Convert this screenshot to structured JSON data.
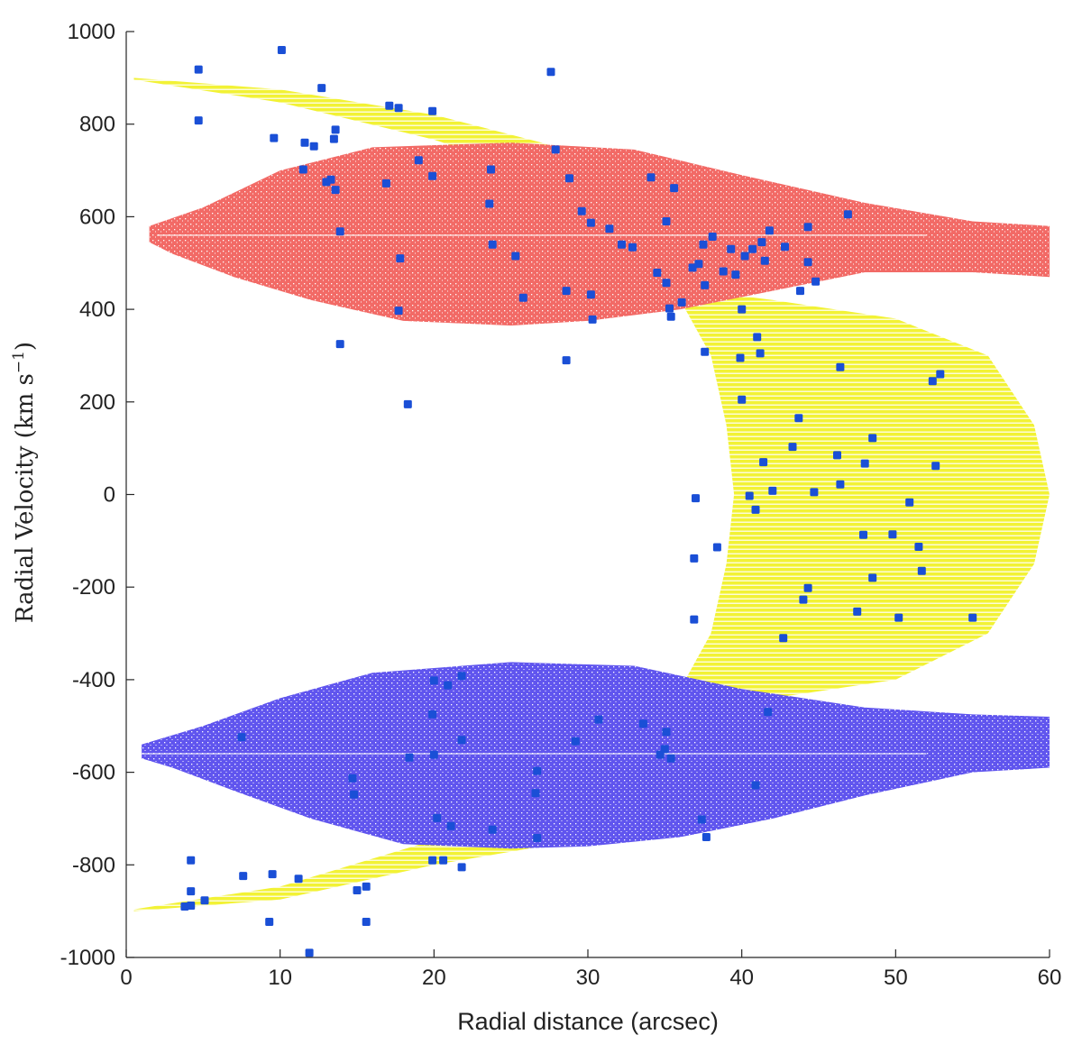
{
  "chart_data": {
    "type": "scatter",
    "xlabel": "Radial distance (arcsec)",
    "ylabel_text": "Radial Velocity (km s",
    "ylabel_sup": "−1",
    "ylabel_close": ")",
    "xlim": [
      0,
      60
    ],
    "ylim": [
      -1000,
      1000
    ],
    "xticks": [
      0,
      10,
      20,
      30,
      40,
      50,
      60
    ],
    "yticks": [
      -1000,
      -800,
      -600,
      -400,
      -200,
      0,
      200,
      400,
      600,
      800,
      1000
    ],
    "grid": false,
    "legend": "none",
    "colors": {
      "yellow_region": "#f2f235",
      "red_region": "#f26a66",
      "blue_region": "#6055ee",
      "observed_points": "#1a4fd6"
    },
    "regions": [
      {
        "color": "yellow",
        "upper_arc": {
          "outer": [
            [
              0.5,
              900
            ],
            [
              10,
              875
            ],
            [
              20,
              820
            ],
            [
              27,
              760
            ],
            [
              32,
              700
            ],
            [
              36,
              600
            ]
          ],
          "inner": [
            [
              10,
              890
            ],
            [
              20,
              840
            ],
            [
              28,
              760
            ]
          ]
        },
        "lower_arc": {
          "outer": [
            [
              0.5,
              -900
            ],
            [
              10,
              -875
            ],
            [
              20,
              -800
            ],
            [
              27,
              -760
            ],
            [
              32,
              -700
            ],
            [
              36,
              -600
            ]
          ]
        },
        "crescent_outer": [
          [
            35,
            450
          ],
          [
            42,
            420
          ],
          [
            50,
            380
          ],
          [
            56,
            300
          ],
          [
            59,
            150
          ],
          [
            60,
            0
          ],
          [
            59,
            -150
          ],
          [
            56,
            -300
          ],
          [
            50,
            -400
          ],
          [
            42,
            -440
          ],
          [
            35,
            -420
          ]
        ],
        "crescent_inner": [
          [
            36,
            420
          ],
          [
            38,
            300
          ],
          [
            39,
            150
          ],
          [
            39.5,
            0
          ],
          [
            39,
            -150
          ],
          [
            38,
            -300
          ],
          [
            36,
            -420
          ]
        ]
      },
      {
        "color": "red",
        "center_velocity": 560,
        "outline": [
          [
            1.5,
            580
          ],
          [
            5,
            620
          ],
          [
            10,
            700
          ],
          [
            16,
            750
          ],
          [
            25,
            760
          ],
          [
            33,
            745
          ],
          [
            40,
            690
          ],
          [
            48,
            630
          ],
          [
            55,
            590
          ],
          [
            60,
            580
          ],
          [
            60,
            470
          ],
          [
            55,
            480
          ],
          [
            48,
            480
          ],
          [
            42,
            440
          ],
          [
            36,
            400
          ],
          [
            30,
            375
          ],
          [
            25,
            365
          ],
          [
            18,
            375
          ],
          [
            12,
            420
          ],
          [
            7,
            470
          ],
          [
            3,
            520
          ],
          [
            1.5,
            545
          ]
        ]
      },
      {
        "color": "blue",
        "center_velocity": -560,
        "outline": [
          [
            1,
            -540
          ],
          [
            5,
            -500
          ],
          [
            10,
            -440
          ],
          [
            16,
            -385
          ],
          [
            25,
            -362
          ],
          [
            33,
            -370
          ],
          [
            40,
            -420
          ],
          [
            48,
            -460
          ],
          [
            55,
            -475
          ],
          [
            60,
            -480
          ],
          [
            60,
            -590
          ],
          [
            55,
            -600
          ],
          [
            48,
            -650
          ],
          [
            42,
            -700
          ],
          [
            36,
            -740
          ],
          [
            30,
            -760
          ],
          [
            25,
            -765
          ],
          [
            18,
            -755
          ],
          [
            12,
            -700
          ],
          [
            7,
            -640
          ],
          [
            3,
            -590
          ],
          [
            1,
            -570
          ]
        ]
      }
    ],
    "observed": {
      "color": "#1a4fd6",
      "points": [
        [
          4.7,
          918
        ],
        [
          4.7,
          808
        ],
        [
          10.1,
          960
        ],
        [
          9.6,
          770
        ],
        [
          11.6,
          760
        ],
        [
          12.2,
          752
        ],
        [
          11.5,
          702
        ],
        [
          13.6,
          788
        ],
        [
          13.5,
          768
        ],
        [
          13.0,
          675
        ],
        [
          13.3,
          680
        ],
        [
          13.6,
          658
        ],
        [
          13.9,
          568
        ],
        [
          12.7,
          878
        ],
        [
          17.1,
          840
        ],
        [
          17.7,
          835
        ],
        [
          19.9,
          828
        ],
        [
          16.9,
          672
        ],
        [
          19.0,
          722
        ],
        [
          19.9,
          688
        ],
        [
          23.7,
          702
        ],
        [
          23.6,
          628
        ],
        [
          23.8,
          540
        ],
        [
          25.3,
          515
        ],
        [
          25.8,
          425
        ],
        [
          17.8,
          510
        ],
        [
          17.7,
          397
        ],
        [
          13.9,
          325
        ],
        [
          18.3,
          195
        ],
        [
          27.6,
          913
        ],
        [
          27.9,
          745
        ],
        [
          28.8,
          683
        ],
        [
          29.6,
          612
        ],
        [
          30.2,
          587
        ],
        [
          31.4,
          574
        ],
        [
          32.2,
          540
        ],
        [
          32.9,
          534
        ],
        [
          34.1,
          685
        ],
        [
          35.6,
          662
        ],
        [
          35.1,
          590
        ],
        [
          34.5,
          479
        ],
        [
          35.1,
          457
        ],
        [
          35.3,
          402
        ],
        [
          35.4,
          384
        ],
        [
          36.1,
          415
        ],
        [
          36.8,
          490
        ],
        [
          37.2,
          498
        ],
        [
          37.5,
          540
        ],
        [
          38.1,
          557
        ],
        [
          37.6,
          452
        ],
        [
          38.8,
          482
        ],
        [
          39.3,
          530
        ],
        [
          39.6,
          475
        ],
        [
          40.2,
          515
        ],
        [
          40.7,
          530
        ],
        [
          41.3,
          545
        ],
        [
          41.5,
          505
        ],
        [
          41.8,
          570
        ],
        [
          42.8,
          535
        ],
        [
          43.8,
          440
        ],
        [
          44.3,
          578
        ],
        [
          44.3,
          502
        ],
        [
          44.8,
          460
        ],
        [
          46.9,
          605
        ],
        [
          28.6,
          440
        ],
        [
          30.2,
          432
        ],
        [
          30.3,
          378
        ],
        [
          28.6,
          290
        ],
        [
          40.0,
          400
        ],
        [
          41.0,
          340
        ],
        [
          41.2,
          305
        ],
        [
          37.6,
          308
        ],
        [
          39.9,
          295
        ],
        [
          40.0,
          205
        ],
        [
          46.4,
          275
        ],
        [
          52.4,
          245
        ],
        [
          52.9,
          260
        ],
        [
          43.7,
          165
        ],
        [
          43.3,
          103
        ],
        [
          48.5,
          122
        ],
        [
          46.2,
          85
        ],
        [
          48.0,
          67
        ],
        [
          41.4,
          70
        ],
        [
          42.0,
          8
        ],
        [
          44.7,
          5
        ],
        [
          46.4,
          22
        ],
        [
          52.6,
          62
        ],
        [
          37.0,
          -8
        ],
        [
          40.5,
          -3
        ],
        [
          40.9,
          -33
        ],
        [
          50.9,
          -17
        ],
        [
          47.9,
          -87
        ],
        [
          49.8,
          -86
        ],
        [
          51.5,
          -113
        ],
        [
          38.4,
          -114
        ],
        [
          36.9,
          -138
        ],
        [
          51.7,
          -165
        ],
        [
          48.5,
          -180
        ],
        [
          44.3,
          -202
        ],
        [
          44.0,
          -227
        ],
        [
          47.5,
          -253
        ],
        [
          50.2,
          -266
        ],
        [
          55.0,
          -266
        ],
        [
          36.9,
          -270
        ],
        [
          42.7,
          -310
        ],
        [
          20.0,
          -402
        ],
        [
          21.8,
          -392
        ],
        [
          20.9,
          -412
        ],
        [
          19.9,
          -475
        ],
        [
          21.8,
          -530
        ],
        [
          30.7,
          -486
        ],
        [
          33.6,
          -495
        ],
        [
          35.1,
          -513
        ],
        [
          35.0,
          -550
        ],
        [
          34.7,
          -562
        ],
        [
          35.4,
          -570
        ],
        [
          41.7,
          -470
        ],
        [
          20.0,
          -562
        ],
        [
          18.4,
          -568
        ],
        [
          14.7,
          -613
        ],
        [
          14.8,
          -648
        ],
        [
          26.7,
          -597
        ],
        [
          26.6,
          -645
        ],
        [
          29.2,
          -533
        ],
        [
          20.2,
          -699
        ],
        [
          21.1,
          -716
        ],
        [
          23.8,
          -724
        ],
        [
          26.7,
          -742
        ],
        [
          37.4,
          -702
        ],
        [
          37.7,
          -740
        ],
        [
          40.9,
          -628
        ],
        [
          7.5,
          -524
        ],
        [
          4.2,
          -790
        ],
        [
          4.2,
          -857
        ],
        [
          3.8,
          -890
        ],
        [
          4.2,
          -888
        ],
        [
          5.1,
          -877
        ],
        [
          7.6,
          -824
        ],
        [
          9.5,
          -820
        ],
        [
          11.2,
          -830
        ],
        [
          9.3,
          -923
        ],
        [
          15.6,
          -923
        ],
        [
          11.9,
          -990
        ],
        [
          15.0,
          -855
        ],
        [
          15.6,
          -847
        ],
        [
          19.9,
          -790
        ],
        [
          20.6,
          -790
        ],
        [
          21.8,
          -805
        ]
      ]
    }
  }
}
